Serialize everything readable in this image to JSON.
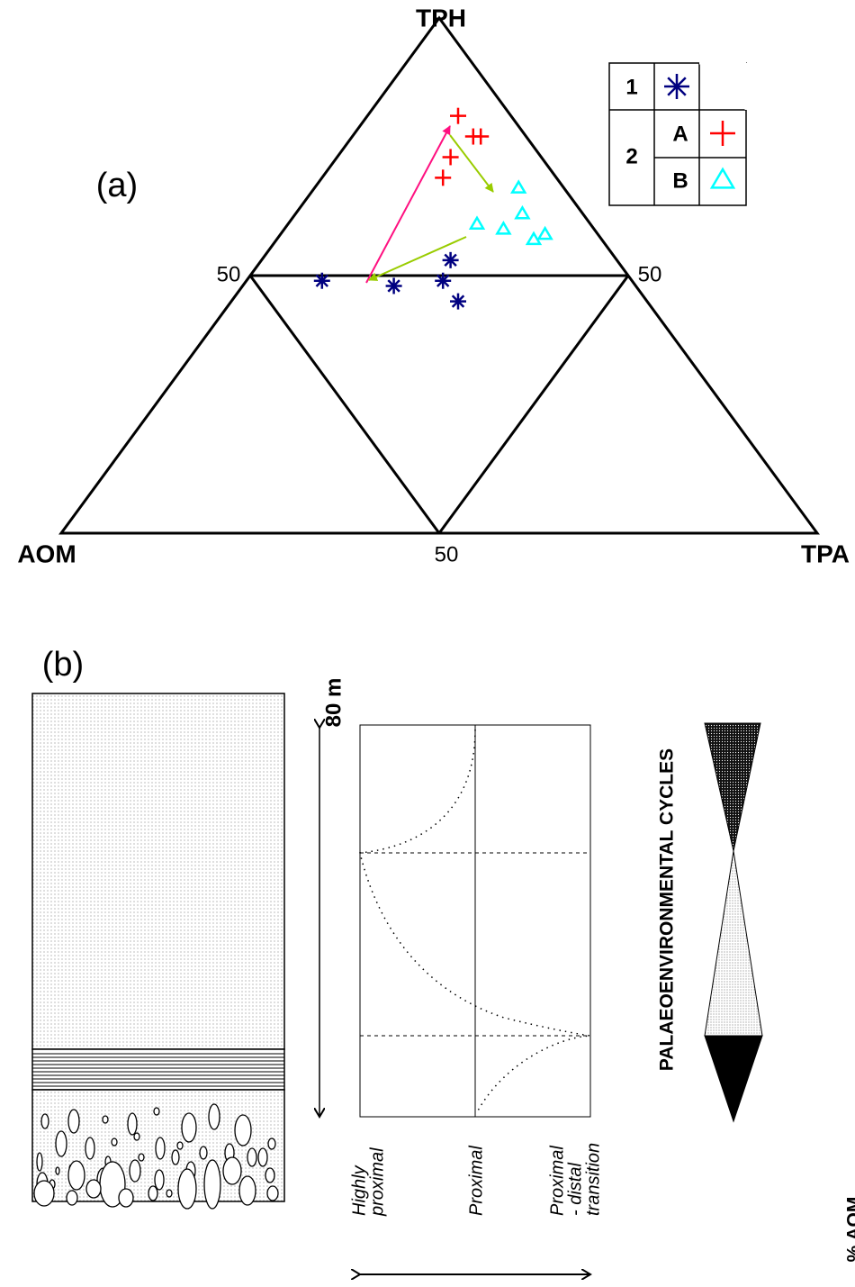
{
  "chart_data": {
    "type": "ternary",
    "panel_label": "(a)",
    "vertices": [
      "TPH",
      "AOM",
      "TPA"
    ],
    "gridlines": [
      50
    ],
    "series": [
      {
        "name": "1",
        "marker": "asterisk",
        "color": "#000080",
        "tph": [
          49,
          48,
          49,
          53,
          45
        ],
        "tpa": [
          10,
          20,
          26,
          25,
          30
        ],
        "aom": [
          41,
          32,
          25,
          22,
          25
        ]
      },
      {
        "name": "A",
        "group": "2",
        "marker": "plus",
        "color": "#ff0000",
        "tph": [
          81,
          77,
          77,
          73,
          69
        ],
        "tpa": [
          12,
          16,
          17,
          15,
          16
        ],
        "aom": [
          7,
          7,
          6,
          12,
          15
        ]
      },
      {
        "name": "B",
        "group": "2",
        "marker": "triangle",
        "color": "#00ffff",
        "tph": [
          67,
          60,
          59,
          62,
          57,
          58
        ],
        "tpa": [
          27,
          25,
          29,
          30,
          34,
          35
        ],
        "aom": [
          6,
          15,
          12,
          8,
          9,
          7
        ]
      }
    ]
  },
  "log": {
    "panel_label": "(b)",
    "thickness": "80 m",
    "environments": [
      [
        "Highly",
        "proximal"
      ],
      [
        "Proximal"
      ],
      [
        "Proximal",
        "- distal",
        "transition"
      ]
    ],
    "cycles_title": "PALAEOENVIRONMENTAL CYCLES",
    "side_label": "% AOM"
  }
}
